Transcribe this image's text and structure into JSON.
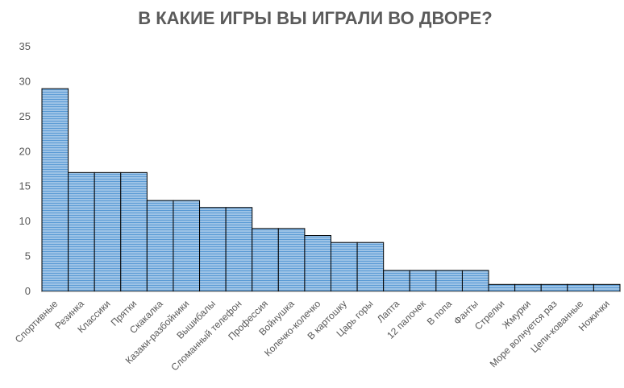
{
  "colors": {
    "bar_fill": "#9dc3e6",
    "bar_stripe": "#5b9bd5",
    "bar_edge": "#000000",
    "axis": "#bfbfbf",
    "text": "#595959",
    "title": "#5b5b5b",
    "background": "#ffffff"
  },
  "chart_data": {
    "type": "bar",
    "title": "В КАКИЕ ИГРЫ ВЫ ИГРАЛИ ВО ДВОРЕ?",
    "xlabel": "",
    "ylabel": "",
    "ylim": [
      0,
      35
    ],
    "yticks": [
      0,
      5,
      10,
      15,
      20,
      25,
      30,
      35
    ],
    "grid": false,
    "legend": "none",
    "bar_pattern": "horizontal-stripes",
    "categories": [
      "Спортивные",
      "Резинка",
      "Классики",
      "Прятки",
      "Скакалка",
      "Казаки-разбойники",
      "Вышибалы",
      "Сломанный телефон",
      "Профессия",
      "Войнушка",
      "Колечко-колечко",
      "В картошку",
      "Царь горы",
      "Лапта",
      "12 палочек",
      "В попа",
      "Фанты",
      "Стрелки",
      "Жмурки",
      "Море волнуется раз",
      "Цепи-кованные",
      "Ножички"
    ],
    "values": [
      29,
      17,
      17,
      17,
      13,
      13,
      12,
      12,
      9,
      9,
      8,
      7,
      7,
      3,
      3,
      3,
      3,
      1,
      1,
      1,
      1,
      1
    ]
  }
}
